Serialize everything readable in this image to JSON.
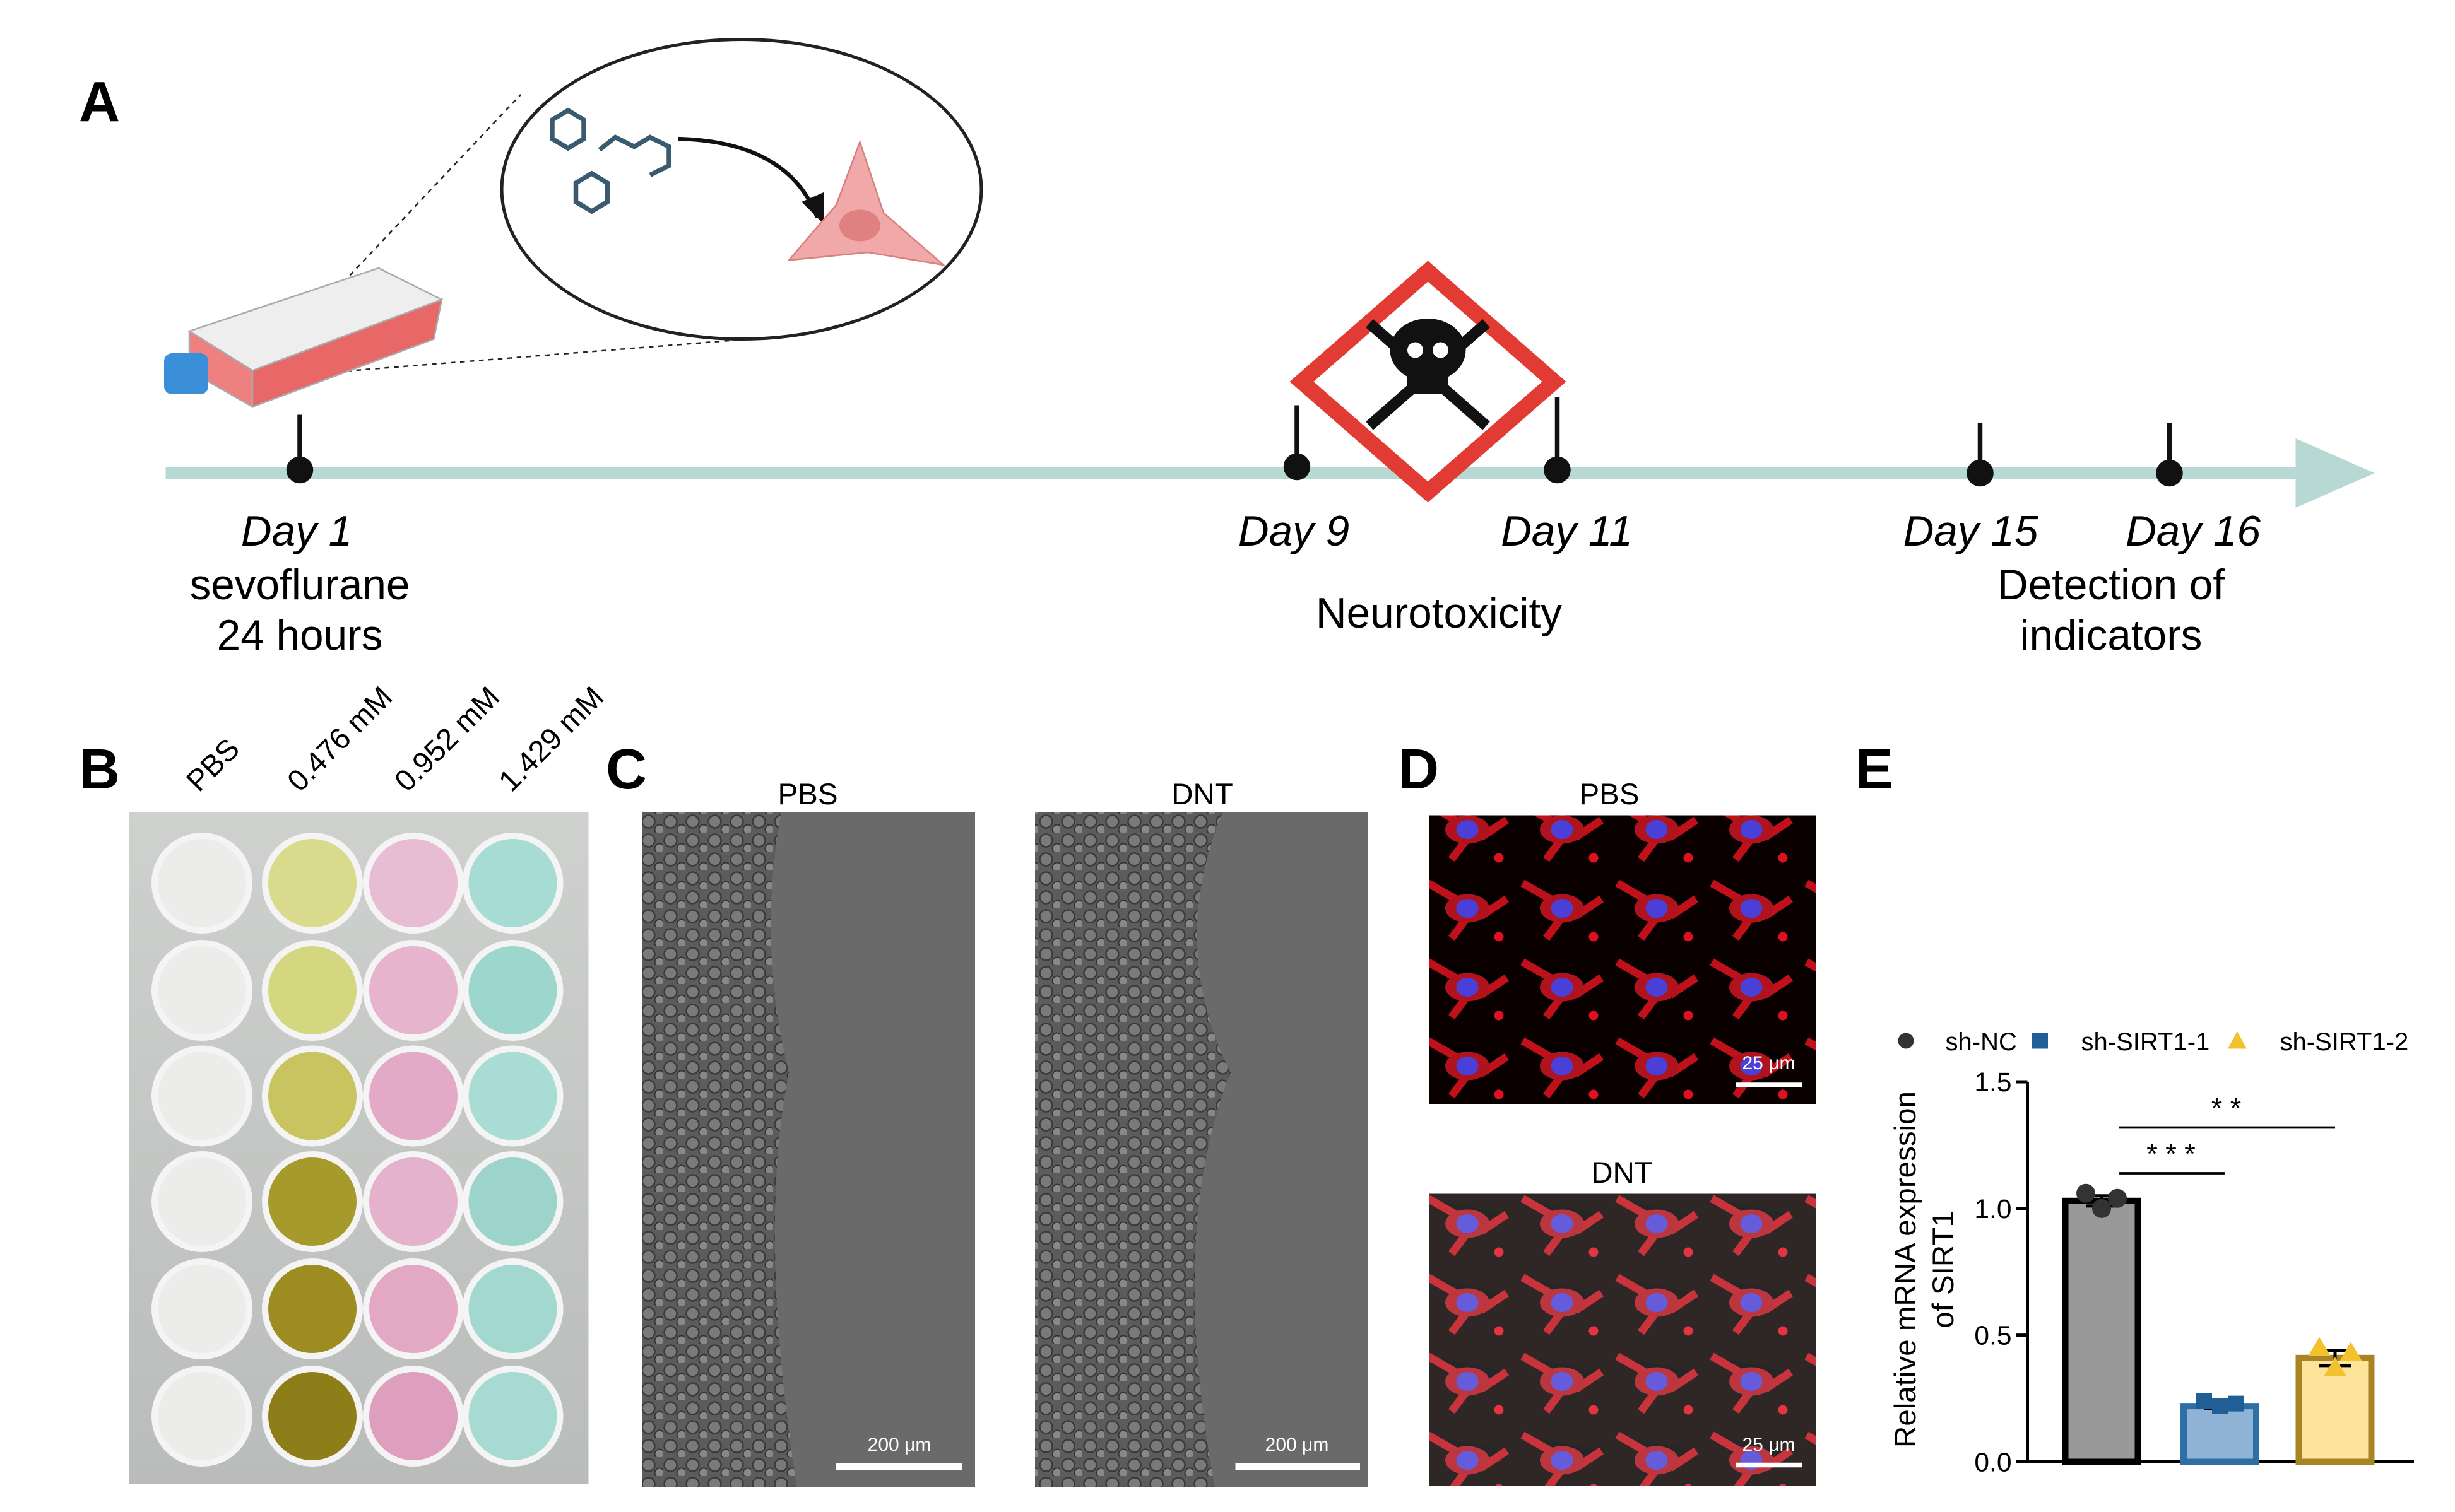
{
  "panel_labels": [
    "A",
    "B",
    "C",
    "D",
    "E"
  ],
  "timeline": {
    "days": [
      "Day 1",
      "Day 9",
      "Day 11",
      "Day 15",
      "Day 16"
    ],
    "captions": {
      "treatment": [
        "sevoflurane",
        "24 hours"
      ],
      "neurotoxicity": "Neurotoxicity",
      "detection": [
        "Detection of",
        "indicators"
      ]
    }
  },
  "panel_b": {
    "columns": [
      "PBS",
      "0.476 mM",
      "0.952 mM",
      "1.429 mM"
    ]
  },
  "panel_c": {
    "titles": [
      "PBS",
      "DNT"
    ],
    "scale_bars": [
      "200 μm",
      "200 μm"
    ]
  },
  "panel_d": {
    "titles": [
      "PBS",
      "DNT"
    ],
    "scale_bars": [
      "25 μm",
      "25 μm"
    ]
  },
  "chart_data": {
    "type": "bar",
    "ylabel": [
      "Relative  mRNA expression",
      "of SIRT1"
    ],
    "categories": [
      "sh-NC",
      "sh-SIRT1-1",
      "sh-SIRT1-2"
    ],
    "values": [
      1.03,
      0.22,
      0.41
    ],
    "errors": [
      0.02,
      0.01,
      0.03
    ],
    "points": [
      [
        1.06,
        1.0,
        1.04
      ],
      [
        0.24,
        0.22,
        0.23
      ],
      [
        0.45,
        0.37,
        0.43
      ]
    ],
    "colors": [
      "#999999",
      "#8fb3d4",
      "#fde49a"
    ],
    "edge_colors": [
      "#000000",
      "#2e6fa6",
      "#a88424"
    ],
    "ylim": [
      0,
      1.5
    ],
    "yticks": [
      {
        "value": 0,
        "label": "0.0"
      },
      0.5,
      {
        "value": 1,
        "label": "1.0"
      },
      1.5
    ],
    "annotations": [
      "* * *",
      "* *"
    ]
  }
}
